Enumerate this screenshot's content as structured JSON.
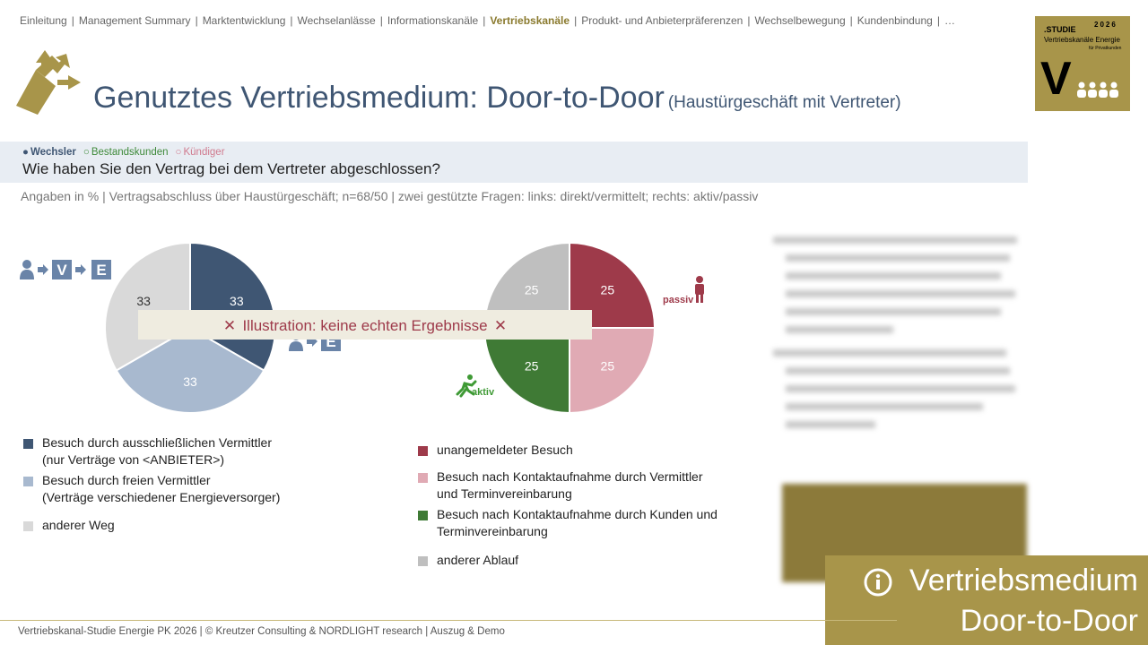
{
  "nav": {
    "items": [
      "Einleitung",
      "Management Summary",
      "Marktentwicklung",
      "Wechselanlässe",
      "Informationskanäle",
      "Vertriebskanäle",
      "Produkt- und Anbieterpräferenzen",
      "Wechselbewegung",
      "Kundenbindung",
      "…"
    ],
    "separator": "|",
    "active": 5
  },
  "badge": {
    "label": ".STUDIE",
    "year": "2026",
    "line1": "Vertriebskanäle Energie",
    "line2": "für Privatkunden",
    "letter": "V"
  },
  "header": {
    "title": "Genutztes Vertriebsmedium: Door-to-Door",
    "subtitle": "(Haustürgeschäft mit Vertreter)"
  },
  "segments": [
    {
      "symbol": "●",
      "name": "Wechsler",
      "color": "#3f5673"
    },
    {
      "symbol": "○",
      "name": "Bestandskunden",
      "color": "#3f8a3a"
    },
    {
      "symbol": "○",
      "name": "Kündiger",
      "color": "#d07a8e"
    }
  ],
  "question": "Wie haben Sie den Vertrag bei dem Vertreter abgeschlossen?",
  "note": "Angaben in % | Vertragsabschluss über Haustürgeschäft; n=68/50 | zwei gestützte Fragen: links: direkt/vermittelt; rechts: aktiv/passiv",
  "icons": {
    "v": "V",
    "e": "E",
    "passiv": "passiv",
    "aktiv": "aktiv"
  },
  "banner": {
    "icon": "✕",
    "text": "Illustration: keine echten Ergebnisse"
  },
  "chart_data": [
    {
      "type": "pie",
      "categories": [
        "Besuch durch ausschließlichen Vermittler\n(nur Verträge von <ANBIETER>)",
        "Besuch durch freien Vermittler\n(Verträge verschiedener Energieversorger)",
        "anderer Weg"
      ],
      "values": [
        33,
        33,
        33
      ],
      "colors": [
        "#3f5673",
        "#a8b9cf",
        "#d9d9d9"
      ]
    },
    {
      "type": "pie",
      "categories": [
        "unangemeldeter Besuch",
        "Besuch nach Kontaktaufnahme durch Vermittler\nund Terminvereinbarung",
        "Besuch nach Kontaktaufnahme durch Kunden und\nTerminvereinbarung",
        "anderer Ablauf"
      ],
      "values": [
        25,
        25,
        25,
        25
      ],
      "colors": [
        "#9e3a4a",
        "#e0aab4",
        "#3f7a35",
        "#bfbfbf"
      ]
    }
  ],
  "info": {
    "line1": "Vertriebsmedium",
    "line2": "Door-to-Door"
  },
  "footer": "Vertriebskanal-Studie Energie PK 2026 | © Kreutzer Consulting & NORDLIGHT research | Auszug & Demo"
}
